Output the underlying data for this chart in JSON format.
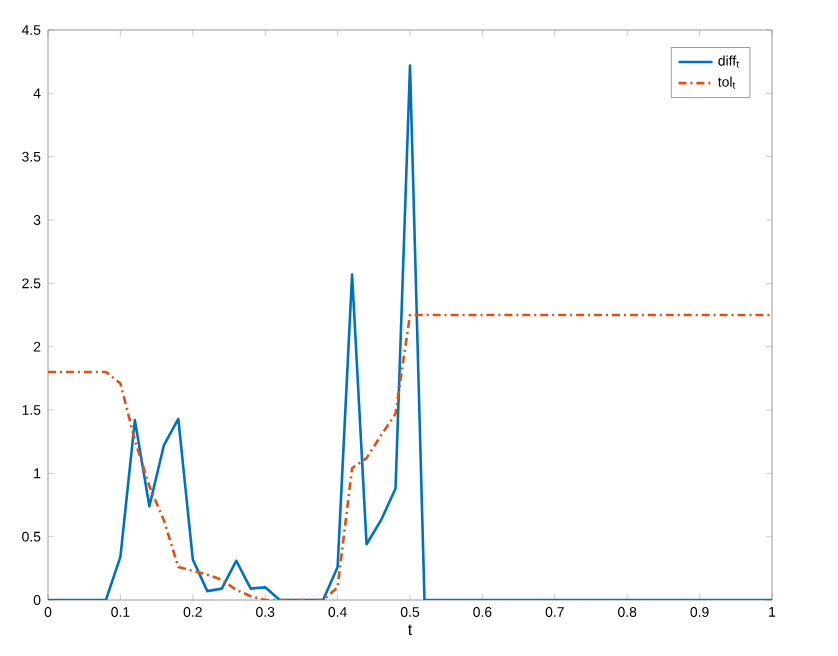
{
  "chart_data": {
    "type": "line",
    "xlabel": "t",
    "x": [
      0,
      0.02,
      0.04,
      0.06,
      0.08,
      0.1,
      0.12,
      0.14,
      0.16,
      0.18,
      0.2,
      0.22,
      0.24,
      0.26,
      0.28,
      0.3,
      0.32,
      0.34,
      0.36,
      0.38,
      0.4,
      0.42,
      0.44,
      0.46,
      0.48,
      0.5,
      0.52,
      0.6,
      0.7,
      0.8,
      0.9,
      1
    ],
    "series": [
      {
        "name": "diff$_{t}$",
        "color": "#0072bd",
        "line_style": "solid",
        "values": [
          0,
          0,
          0,
          0,
          0,
          0.34,
          1.42,
          0.74,
          1.22,
          1.43,
          0.32,
          0.07,
          0.09,
          0.31,
          0.09,
          0.1,
          0,
          0,
          0,
          0,
          0.26,
          2.57,
          0.44,
          0.63,
          0.88,
          4.22,
          0,
          0,
          0,
          0,
          0,
          0
        ]
      },
      {
        "name": "tol$_{t}$",
        "color": "#d95319",
        "line_style": "dashed",
        "values": [
          1.8,
          1.8,
          1.8,
          1.8,
          1.8,
          1.71,
          1.26,
          0.9,
          0.63,
          0.26,
          0.23,
          0.2,
          0.16,
          0.08,
          0.03,
          0,
          0,
          0,
          0,
          0,
          0.1,
          1.04,
          1.12,
          1.3,
          1.47,
          2.25,
          2.25,
          2.25,
          2.25,
          2.25,
          2.25,
          2.25
        ]
      }
    ],
    "xlim": [
      0,
      1
    ],
    "xticks": [
      0,
      0.1,
      0.2,
      0.3,
      0.4,
      0.5,
      0.6,
      0.7,
      0.8,
      0.9,
      1
    ],
    "ylim": [
      0,
      4.5
    ],
    "yticks": [
      0,
      0.5,
      1,
      1.5,
      2,
      2.5,
      3,
      3.5,
      4,
      4.5
    ],
    "legend": "top right",
    "marker": "none"
  }
}
